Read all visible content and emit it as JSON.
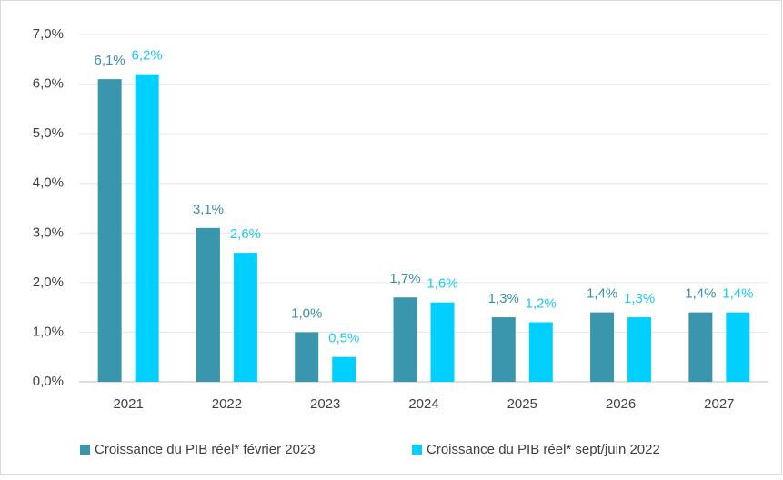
{
  "chart_data": {
    "type": "bar",
    "categories": [
      "2021",
      "2022",
      "2023",
      "2024",
      "2025",
      "2026",
      "2027"
    ],
    "series": [
      {
        "name": "Croissance du PIB réel* février 2023",
        "color": "#3a96ad",
        "label_color": "#3a8fa6",
        "values": [
          6.1,
          3.1,
          1.0,
          1.7,
          1.3,
          1.4,
          1.4
        ],
        "value_labels": [
          "6,1%",
          "3,1%",
          "1,0%",
          "1,7%",
          "1,3%",
          "1,4%",
          "1,4%"
        ]
      },
      {
        "name": "Croissance du PIB réel* sept/juin 2022",
        "color": "#00cfff",
        "label_color": "#1ec8f0",
        "values": [
          6.2,
          2.6,
          0.5,
          1.6,
          1.2,
          1.3,
          1.4
        ],
        "value_labels": [
          "6,2%",
          "2,6%",
          "0,5%",
          "1,6%",
          "1,2%",
          "1,3%",
          "1,4%"
        ]
      }
    ],
    "ylim": [
      0,
      7
    ],
    "yticks": [
      {
        "value": 0,
        "label": "0,0%"
      },
      {
        "value": 1,
        "label": "1,0%"
      },
      {
        "value": 2,
        "label": "2,0%"
      },
      {
        "value": 3,
        "label": "3,0%"
      },
      {
        "value": 4,
        "label": "4,0%"
      },
      {
        "value": 5,
        "label": "5,0%"
      },
      {
        "value": 6,
        "label": "6,0%"
      },
      {
        "value": 7,
        "label": "7,0%"
      }
    ],
    "grid": true,
    "legend": "bottom"
  }
}
